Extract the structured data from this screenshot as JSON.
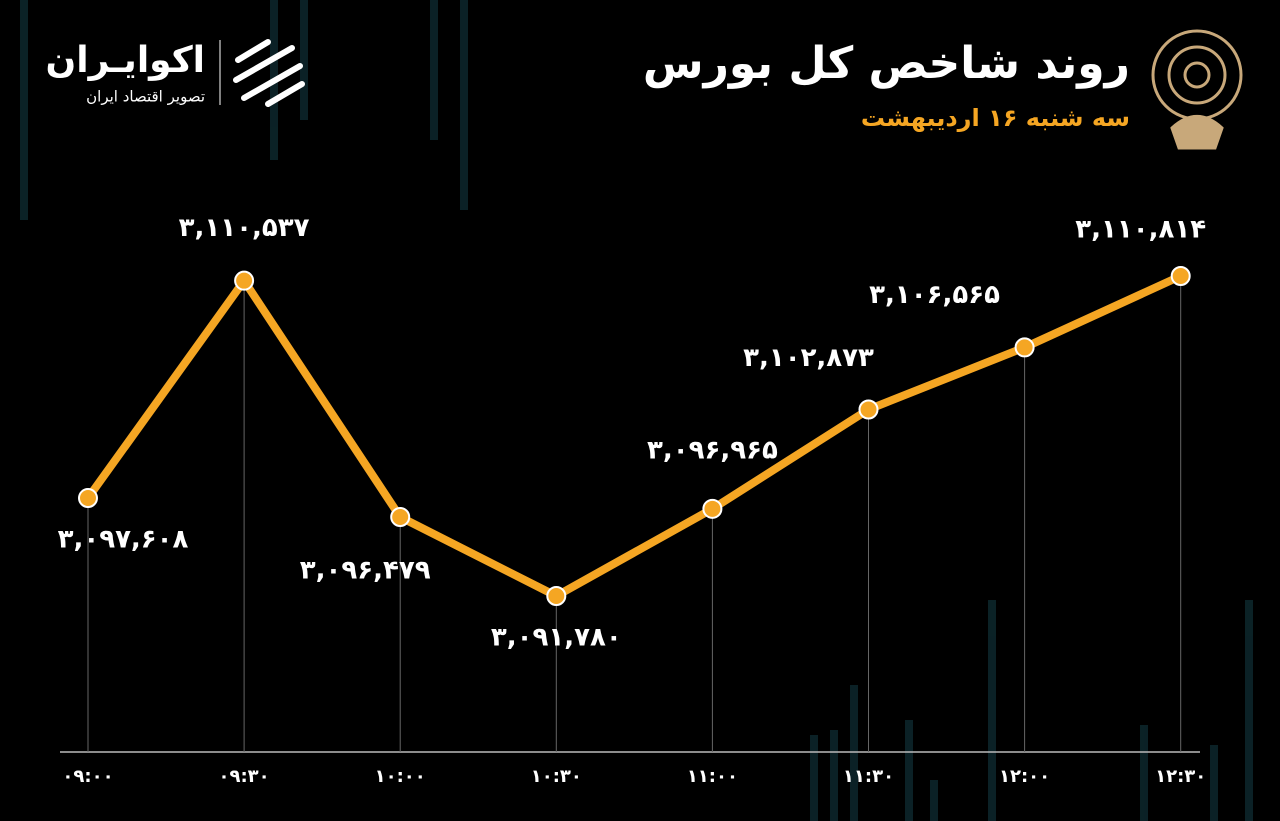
{
  "chart_data": {
    "type": "line",
    "title": "روند شاخص کل بورس",
    "subtitle": "سه شنبه ۱۶ اردیبهشت",
    "brand": "اکوایـران",
    "brand_tagline": "تصویر اقتصاد ایران",
    "categories": [
      "۰۹:۰۰",
      "۰۹:۳۰",
      "۱۰:۰۰",
      "۱۰:۳۰",
      "۱۱:۰۰",
      "۱۱:۳۰",
      "۱۲:۰۰",
      "۱۲:۳۰"
    ],
    "values": [
      3097608,
      3110537,
      3096479,
      3091780,
      3096965,
      3102873,
      3106565,
      3110814
    ],
    "value_labels": [
      "۳,۰۹۷,۶۰۸",
      "۳,۱۱۰,۵۳۷",
      "۳,۰۹۶,۴۷۹",
      "۳,۰۹۱,۷۸۰",
      "۳,۰۹۶,۹۶۵",
      "۳,۱۰۲,۸۷۳",
      "۳,۱۰۶,۵۶۵",
      "۳,۱۱۰,۸۱۴"
    ],
    "color": "#f5a623"
  }
}
